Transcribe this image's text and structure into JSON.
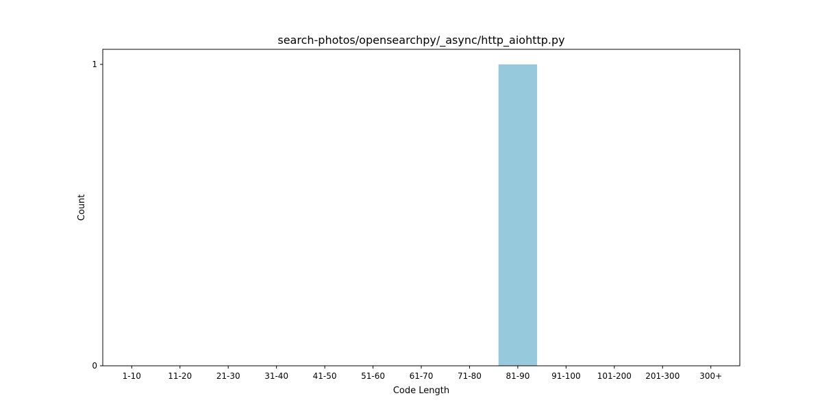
{
  "chart_data": {
    "type": "bar",
    "title": "search-photos/opensearchpy/_async/http_aiohttp.py",
    "xlabel": "Code Length",
    "ylabel": "Count",
    "categories": [
      "1-10",
      "11-20",
      "21-30",
      "31-40",
      "41-50",
      "51-60",
      "61-70",
      "71-80",
      "81-90",
      "91-100",
      "101-200",
      "201-300",
      "300+"
    ],
    "values": [
      0,
      0,
      0,
      0,
      0,
      0,
      0,
      0,
      1,
      0,
      0,
      0,
      0
    ],
    "ylim": [
      0,
      1.05
    ],
    "yticks": [
      0,
      1
    ],
    "bar_color": "#96c9dc",
    "grid": false,
    "legend": "none"
  }
}
